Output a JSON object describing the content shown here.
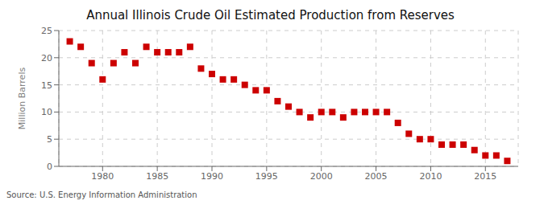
{
  "chart_data": {
    "type": "scatter",
    "title": "Annual Illinois Crude Oil Estimated Production from Reserves",
    "ylabel": "Million Barrels",
    "annotations": [
      "Source: U.S. Energy Information Administration"
    ],
    "x": [
      1977,
      1978,
      1979,
      1980,
      1981,
      1982,
      1983,
      1984,
      1985,
      1986,
      1987,
      1988,
      1989,
      1990,
      1991,
      1992,
      1993,
      1994,
      1995,
      1996,
      1997,
      1998,
      1999,
      2000,
      2001,
      2002,
      2003,
      2004,
      2005,
      2006,
      2007,
      2008,
      2009,
      2010,
      2011,
      2012,
      2013,
      2014,
      2015,
      2016,
      2017
    ],
    "values": [
      23,
      22,
      19,
      16,
      19,
      21,
      19,
      22,
      21,
      21,
      21,
      22,
      18,
      17,
      16,
      16,
      15,
      14,
      14,
      12,
      11,
      10,
      9,
      10,
      10,
      9,
      10,
      10,
      10,
      10,
      8,
      6,
      5,
      5,
      4,
      4,
      4,
      3,
      2,
      2,
      1
    ],
    "xlim": [
      1976,
      2018
    ],
    "xticks": [
      1980,
      1985,
      1990,
      1995,
      2000,
      2005,
      2010,
      2015
    ],
    "ylim": [
      0,
      25
    ],
    "yticks": [
      0,
      5,
      10,
      15,
      20,
      25
    ],
    "grid": true,
    "color": "#cc0000",
    "marker": "square"
  }
}
